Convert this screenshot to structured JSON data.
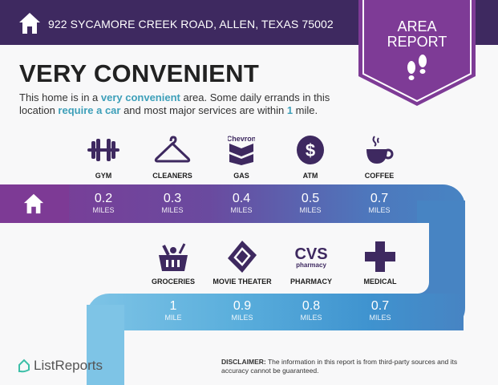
{
  "header": {
    "address": "922 SYCAMORE CREEK ROAD, ALLEN, TEXAS 75002",
    "badge_line1": "AREA",
    "badge_line2": "REPORT"
  },
  "title": "VERY CONVENIENT",
  "description": {
    "p1": "This home is in a ",
    "h1": "very convenient",
    "p2": " area. Some daily errands in this location ",
    "h2": "require a car",
    "p3": " and most major services are within ",
    "h3": "1",
    "p4": " mile."
  },
  "top_row": [
    {
      "label": "GYM",
      "value": "0.2",
      "unit": "MILES",
      "icon": "dumbbell-icon"
    },
    {
      "label": "CLEANERS",
      "value": "0.3",
      "unit": "MILES",
      "icon": "hanger-icon"
    },
    {
      "label": "GAS",
      "value": "0.4",
      "unit": "MILES",
      "icon": "chevron-logo-icon",
      "brand": "Chevron"
    },
    {
      "label": "ATM",
      "value": "0.5",
      "unit": "MILES",
      "icon": "dollar-icon"
    },
    {
      "label": "COFFEE",
      "value": "0.7",
      "unit": "MILES",
      "icon": "coffee-cup-icon"
    }
  ],
  "bottom_row": [
    {
      "label": "GROCERIES",
      "value": "1",
      "unit": "MILE",
      "icon": "basket-icon"
    },
    {
      "label": "MOVIE THEATER",
      "value": "0.9",
      "unit": "MILES",
      "icon": "ticket-icon"
    },
    {
      "label": "PHARMACY",
      "value": "0.8",
      "unit": "MILES",
      "icon": "cvs-logo-icon",
      "brand": "CVS",
      "brand_sub": "pharmacy"
    },
    {
      "label": "MEDICAL",
      "value": "0.7",
      "unit": "MILES",
      "icon": "medical-cross-icon"
    }
  ],
  "footer": {
    "logo": "ListReports",
    "disclaimer_label": "DISCLAIMER:",
    "disclaimer_text": " The information in this report is from third-party sources and its accuracy cannot be guaranteed."
  },
  "colors": {
    "header": "#3e2960",
    "badge": "#7e3b96",
    "icon": "#3e2960",
    "highlight": "#3d9fb9"
  }
}
